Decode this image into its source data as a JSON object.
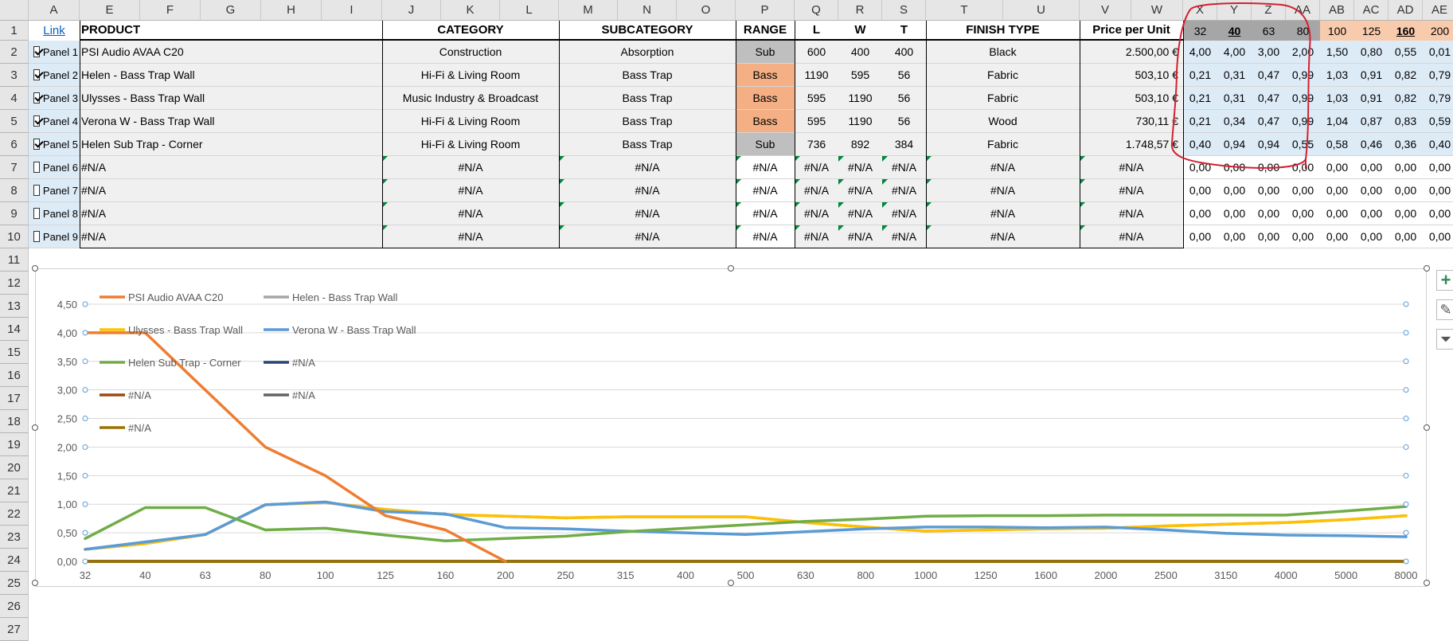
{
  "link_text": "Link",
  "columns": [
    {
      "key": "A",
      "label": "A",
      "w": 64
    },
    {
      "key": "E",
      "label": "E",
      "w": 76
    },
    {
      "key": "F",
      "label": "F",
      "w": 76
    },
    {
      "key": "G",
      "label": "G",
      "w": 76
    },
    {
      "key": "H",
      "label": "H",
      "w": 76
    },
    {
      "key": "I",
      "label": "I",
      "w": 76
    },
    {
      "key": "J",
      "label": "J",
      "w": 74
    },
    {
      "key": "K",
      "label": "K",
      "w": 74
    },
    {
      "key": "L",
      "label": "L",
      "w": 74
    },
    {
      "key": "M",
      "label": "M",
      "w": 74
    },
    {
      "key": "N",
      "label": "N",
      "w": 74
    },
    {
      "key": "O",
      "label": "O",
      "w": 74
    },
    {
      "key": "P",
      "label": "P",
      "w": 74
    },
    {
      "key": "Q",
      "label": "Q",
      "w": 55
    },
    {
      "key": "R",
      "label": "R",
      "w": 55
    },
    {
      "key": "S",
      "label": "S",
      "w": 55
    },
    {
      "key": "T",
      "label": "T",
      "w": 97
    },
    {
      "key": "U",
      "label": "U",
      "w": 96
    },
    {
      "key": "V",
      "label": "V",
      "w": 65
    },
    {
      "key": "W",
      "label": "W",
      "w": 65
    },
    {
      "key": "X",
      "label": "X",
      "w": 43
    },
    {
      "key": "Y",
      "label": "Y",
      "w": 43
    },
    {
      "key": "Z",
      "label": "Z",
      "w": 43
    },
    {
      "key": "AA",
      "label": "AA",
      "w": 43
    },
    {
      "key": "AB",
      "label": "AB",
      "w": 43
    },
    {
      "key": "AC",
      "label": "AC",
      "w": 43
    },
    {
      "key": "AD",
      "label": "AD",
      "w": 43
    },
    {
      "key": "AE",
      "label": "AE",
      "w": 43
    },
    {
      "key": "AF",
      "label": "",
      "w": 10
    }
  ],
  "row_numbers": [
    "1",
    "2",
    "3",
    "4",
    "5",
    "6",
    "7",
    "8",
    "9",
    "10",
    "11",
    "12",
    "13",
    "14",
    "15",
    "16",
    "17",
    "18",
    "19",
    "20",
    "21",
    "22",
    "23",
    "24",
    "25",
    "26",
    "27"
  ],
  "headers": {
    "product": "PRODUCT",
    "category": "CATEGORY",
    "subcategory": "SUBCATEGORY",
    "range": "RANGE",
    "l": "L",
    "w": "W",
    "t": "T",
    "finish": "FINISH TYPE",
    "price": "Price per Unit"
  },
  "freq_headers": [
    "32",
    "40",
    "63",
    "80",
    "100",
    "125",
    "160",
    "200"
  ],
  "rows": [
    {
      "checked": true,
      "panel": "Panel 1",
      "product": "PSI Audio AVAA C20",
      "category": "Construction",
      "subcategory": "Absorption",
      "range": "Sub",
      "range_style": "sub",
      "l": "600",
      "w": "400",
      "t": "400",
      "finish": "Black",
      "price": "2.500,00 €",
      "vals": [
        "4,00",
        "4,00",
        "3,00",
        "2,00",
        "1,50",
        "0,80",
        "0,55",
        "0,01"
      ]
    },
    {
      "checked": true,
      "panel": "Panel 2",
      "product": "Helen - Bass Trap Wall",
      "category": "Hi-Fi & Living Room",
      "subcategory": "Bass Trap",
      "range": "Bass",
      "range_style": "bass",
      "l": "1190",
      "w": "595",
      "t": "56",
      "finish": "Fabric",
      "price": "503,10 €",
      "vals": [
        "0,21",
        "0,31",
        "0,47",
        "0,99",
        "1,03",
        "0,91",
        "0,82",
        "0,79"
      ]
    },
    {
      "checked": true,
      "panel": "Panel 3",
      "product": "Ulysses - Bass Trap Wall",
      "category": "Music Industry & Broadcast",
      "subcategory": "Bass Trap",
      "range": "Bass",
      "range_style": "bass",
      "l": "595",
      "w": "1190",
      "t": "56",
      "finish": "Fabric",
      "price": "503,10 €",
      "vals": [
        "0,21",
        "0,31",
        "0,47",
        "0,99",
        "1,03",
        "0,91",
        "0,82",
        "0,79"
      ]
    },
    {
      "checked": true,
      "panel": "Panel 4",
      "product": "Verona W - Bass Trap Wall",
      "category": "Hi-Fi & Living Room",
      "subcategory": "Bass Trap",
      "range": "Bass",
      "range_style": "bass",
      "l": "595",
      "w": "1190",
      "t": "56",
      "finish": "Wood",
      "price": "730,11 €",
      "vals": [
        "0,21",
        "0,34",
        "0,47",
        "0,99",
        "1,04",
        "0,87",
        "0,83",
        "0,59"
      ]
    },
    {
      "checked": true,
      "panel": "Panel 5",
      "product": "Helen Sub Trap - Corner",
      "category": "Hi-Fi & Living Room",
      "subcategory": "Bass Trap",
      "range": "Sub",
      "range_style": "sub",
      "l": "736",
      "w": "892",
      "t": "384",
      "finish": "Fabric",
      "price": "1.748,57 €",
      "vals": [
        "0,40",
        "0,94",
        "0,94",
        "0,55",
        "0,58",
        "0,46",
        "0,36",
        "0,40"
      ]
    },
    {
      "checked": false,
      "panel": "Panel 6",
      "product": "#N/A",
      "category": "#N/A",
      "subcategory": "#N/A",
      "range": "#N/A",
      "range_style": "na",
      "l": "#N/A",
      "w": "#N/A",
      "t": "#N/A",
      "finish": "#N/A",
      "price": "#N/A",
      "vals": [
        "0,00",
        "0,00",
        "0,00",
        "0,00",
        "0,00",
        "0,00",
        "0,00",
        "0,00"
      ]
    },
    {
      "checked": false,
      "panel": "Panel 7",
      "product": "#N/A",
      "category": "#N/A",
      "subcategory": "#N/A",
      "range": "#N/A",
      "range_style": "na",
      "l": "#N/A",
      "w": "#N/A",
      "t": "#N/A",
      "finish": "#N/A",
      "price": "#N/A",
      "vals": [
        "0,00",
        "0,00",
        "0,00",
        "0,00",
        "0,00",
        "0,00",
        "0,00",
        "0,00"
      ]
    },
    {
      "checked": false,
      "panel": "Panel 8",
      "product": "#N/A",
      "category": "#N/A",
      "subcategory": "#N/A",
      "range": "#N/A",
      "range_style": "na",
      "l": "#N/A",
      "w": "#N/A",
      "t": "#N/A",
      "finish": "#N/A",
      "price": "#N/A",
      "vals": [
        "0,00",
        "0,00",
        "0,00",
        "0,00",
        "0,00",
        "0,00",
        "0,00",
        "0,00"
      ]
    },
    {
      "checked": false,
      "panel": "Panel 9",
      "product": "#N/A",
      "category": "#N/A",
      "subcategory": "#N/A",
      "range": "#N/A",
      "range_style": "na",
      "l": "#N/A",
      "w": "#N/A",
      "t": "#N/A",
      "finish": "#N/A",
      "price": "#N/A",
      "vals": [
        "0,00",
        "0,00",
        "0,00",
        "0,00",
        "0,00",
        "0,00",
        "0,00",
        "0,00"
      ]
    }
  ],
  "colors": {
    "annotation": "#d22030",
    "freq_low_header": "#a6a6a6",
    "freq_high_header": "#f8cbad",
    "bass": "#f4b084",
    "sub": "#bfbfbf"
  },
  "chart_data": {
    "type": "line",
    "categories": [
      "32",
      "40",
      "63",
      "80",
      "100",
      "125",
      "160",
      "200",
      "250",
      "315",
      "400",
      "500",
      "630",
      "800",
      "1000",
      "1250",
      "1600",
      "2000",
      "2500",
      "3150",
      "4000",
      "5000",
      "8000"
    ],
    "ylim": [
      0,
      4.5
    ],
    "yticks": [
      "0,00",
      "0,50",
      "1,00",
      "1,50",
      "2,00",
      "2,50",
      "3,00",
      "3,50",
      "4,00",
      "4,50"
    ],
    "grid": true,
    "legend_placement": "top-left",
    "series": [
      {
        "name": "PSI Audio AVAA C20",
        "color": "#ed7d31",
        "values": [
          4.0,
          4.0,
          3.0,
          2.0,
          1.5,
          0.8,
          0.55,
          0.0,
          null,
          null,
          null,
          null,
          null,
          null,
          null,
          null,
          null,
          null,
          null,
          null,
          null,
          null,
          null
        ]
      },
      {
        "name": "Helen - Bass Trap Wall",
        "color": "#a5a5a5",
        "values": [
          0.21,
          0.31,
          0.47,
          0.99,
          1.03,
          0.91,
          0.82,
          0.79,
          0.76,
          0.78,
          0.78,
          0.78,
          0.68,
          0.6,
          0.53,
          0.55,
          0.57,
          0.58,
          0.62,
          0.65,
          0.68,
          0.73,
          0.8
        ]
      },
      {
        "name": "Ulysses - Bass Trap Wall",
        "color": "#ffc000",
        "values": [
          0.21,
          0.31,
          0.47,
          0.99,
          1.03,
          0.91,
          0.82,
          0.79,
          0.76,
          0.78,
          0.78,
          0.78,
          0.68,
          0.6,
          0.53,
          0.55,
          0.57,
          0.58,
          0.62,
          0.65,
          0.68,
          0.73,
          0.8
        ]
      },
      {
        "name": "Verona W - Bass Trap Wall",
        "color": "#5b9bd5",
        "values": [
          0.21,
          0.34,
          0.47,
          0.99,
          1.04,
          0.87,
          0.83,
          0.59,
          0.57,
          0.53,
          0.5,
          0.47,
          0.52,
          0.57,
          0.6,
          0.6,
          0.59,
          0.6,
          0.55,
          0.49,
          0.46,
          0.45,
          0.43
        ]
      },
      {
        "name": "Helen Sub Trap - Corner",
        "color": "#70ad47",
        "values": [
          0.4,
          0.94,
          0.94,
          0.55,
          0.58,
          0.46,
          0.36,
          0.4,
          0.44,
          0.52,
          0.58,
          0.64,
          0.7,
          0.74,
          0.79,
          0.8,
          0.8,
          0.81,
          0.81,
          0.81,
          0.81,
          0.88,
          0.96
        ]
      },
      {
        "name": "#N/A",
        "color": "#264478",
        "values": [
          0,
          0,
          0,
          0,
          0,
          0,
          0,
          0,
          0,
          0,
          0,
          0,
          0,
          0,
          0,
          0,
          0,
          0,
          0,
          0,
          0,
          0,
          0
        ]
      },
      {
        "name": "#N/A",
        "color": "#9e480e",
        "values": [
          0,
          0,
          0,
          0,
          0,
          0,
          0,
          0,
          0,
          0,
          0,
          0,
          0,
          0,
          0,
          0,
          0,
          0,
          0,
          0,
          0,
          0,
          0
        ]
      },
      {
        "name": "#N/A",
        "color": "#636363",
        "values": [
          0,
          0,
          0,
          0,
          0,
          0,
          0,
          0,
          0,
          0,
          0,
          0,
          0,
          0,
          0,
          0,
          0,
          0,
          0,
          0,
          0,
          0,
          0
        ]
      },
      {
        "name": "#N/A",
        "color": "#997300",
        "values": [
          0,
          0,
          0,
          0,
          0,
          0,
          0,
          0,
          0,
          0,
          0,
          0,
          0,
          0,
          0,
          0,
          0,
          0,
          0,
          0,
          0,
          0,
          0
        ]
      }
    ]
  },
  "side_buttons": [
    {
      "name": "chart-elements-button",
      "icon": "plus-icon"
    },
    {
      "name": "chart-styles-button",
      "icon": "brush-icon"
    },
    {
      "name": "chart-filters-button",
      "icon": "filter-icon"
    }
  ]
}
